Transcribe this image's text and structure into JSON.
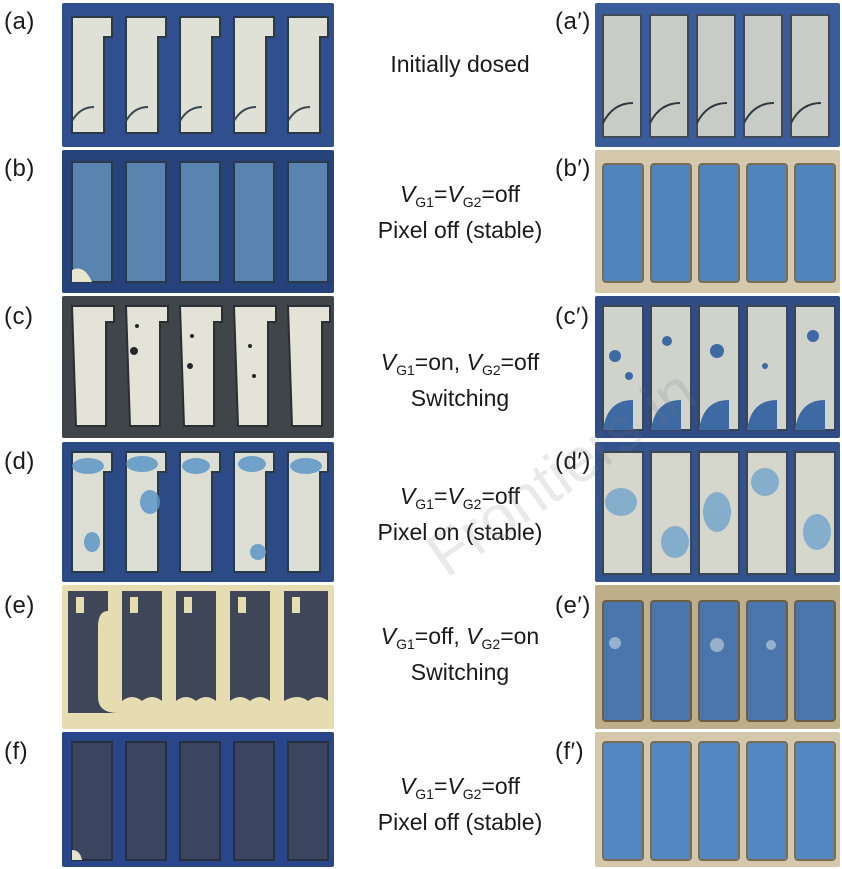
{
  "rows": [
    {
      "left_label": "(a)",
      "right_label": "(a′)",
      "caption": {
        "text": "Initially dosed"
      }
    },
    {
      "left_label": "(b)",
      "right_label": "(b′)",
      "caption": {
        "V": "V",
        "g1": "G1",
        "eq1": "=",
        "V2": "V",
        "g2": "G2",
        "eq2": "=off",
        "line2": "Pixel off (stable)"
      }
    },
    {
      "left_label": "(c)",
      "right_label": "(c′)",
      "caption": {
        "V": "V",
        "g1": "G1",
        "eq1": "=on, ",
        "V2": "V",
        "g2": "G2",
        "eq2": "=off",
        "line2": "Switching"
      }
    },
    {
      "left_label": "(d)",
      "right_label": "(d′)",
      "caption": {
        "V": "V",
        "g1": "G1",
        "eq1": "=",
        "V2": "V",
        "g2": "G2",
        "eq2": "=off",
        "line2": "Pixel on (stable)"
      }
    },
    {
      "left_label": "(e)",
      "right_label": "(e′)",
      "caption": {
        "V": "V",
        "g1": "G1",
        "eq1": "=off, ",
        "V2": "V",
        "g2": "G2",
        "eq2": "=on",
        "line2": "Switching"
      }
    },
    {
      "left_label": "(f)",
      "right_label": "(f′)",
      "caption": {
        "V": "V",
        "g1": "G1",
        "eq1": "=",
        "V2": "V",
        "g2": "G2",
        "eq2": "=off",
        "line2": "Pixel off (stable)"
      }
    }
  ],
  "watermark": "Frontiers in",
  "colors": {
    "substrate_blue": "#3b5c9a",
    "glass_light": "#d9dcd3",
    "ink_blue": "#4c86b8",
    "dark_state": "#3a4357",
    "gold_frame": "#c8b48a"
  }
}
